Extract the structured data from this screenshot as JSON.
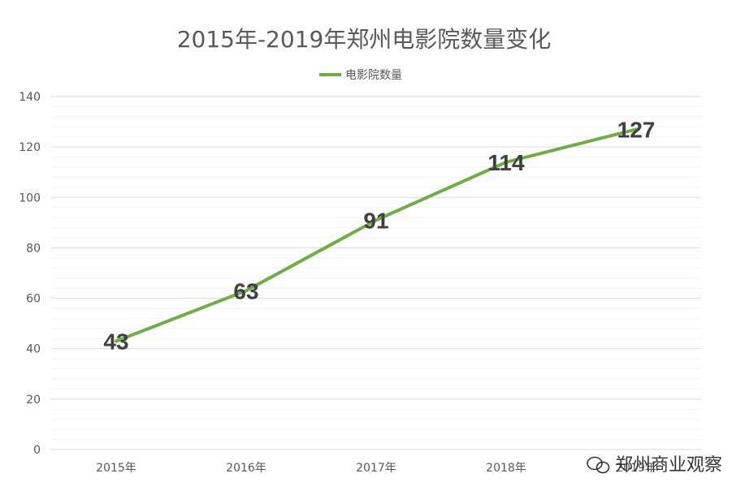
{
  "chart_data": {
    "type": "line",
    "title": "2015年-2019年郑州电影院数量变化",
    "categories": [
      "2015年",
      "2016年",
      "2017年",
      "2018年",
      "2019年"
    ],
    "series": [
      {
        "name": "电影院数量",
        "values": [
          43,
          63,
          91,
          114,
          127
        ],
        "color": "#70ad47"
      }
    ],
    "ylim": [
      0,
      140
    ],
    "yticks": [
      0,
      20,
      40,
      60,
      80,
      100,
      120,
      140
    ],
    "grid": true,
    "legend": "top-center",
    "data_labels": true
  },
  "watermark": {
    "text": "郑州商业观察",
    "icon": "wechat-icon"
  }
}
